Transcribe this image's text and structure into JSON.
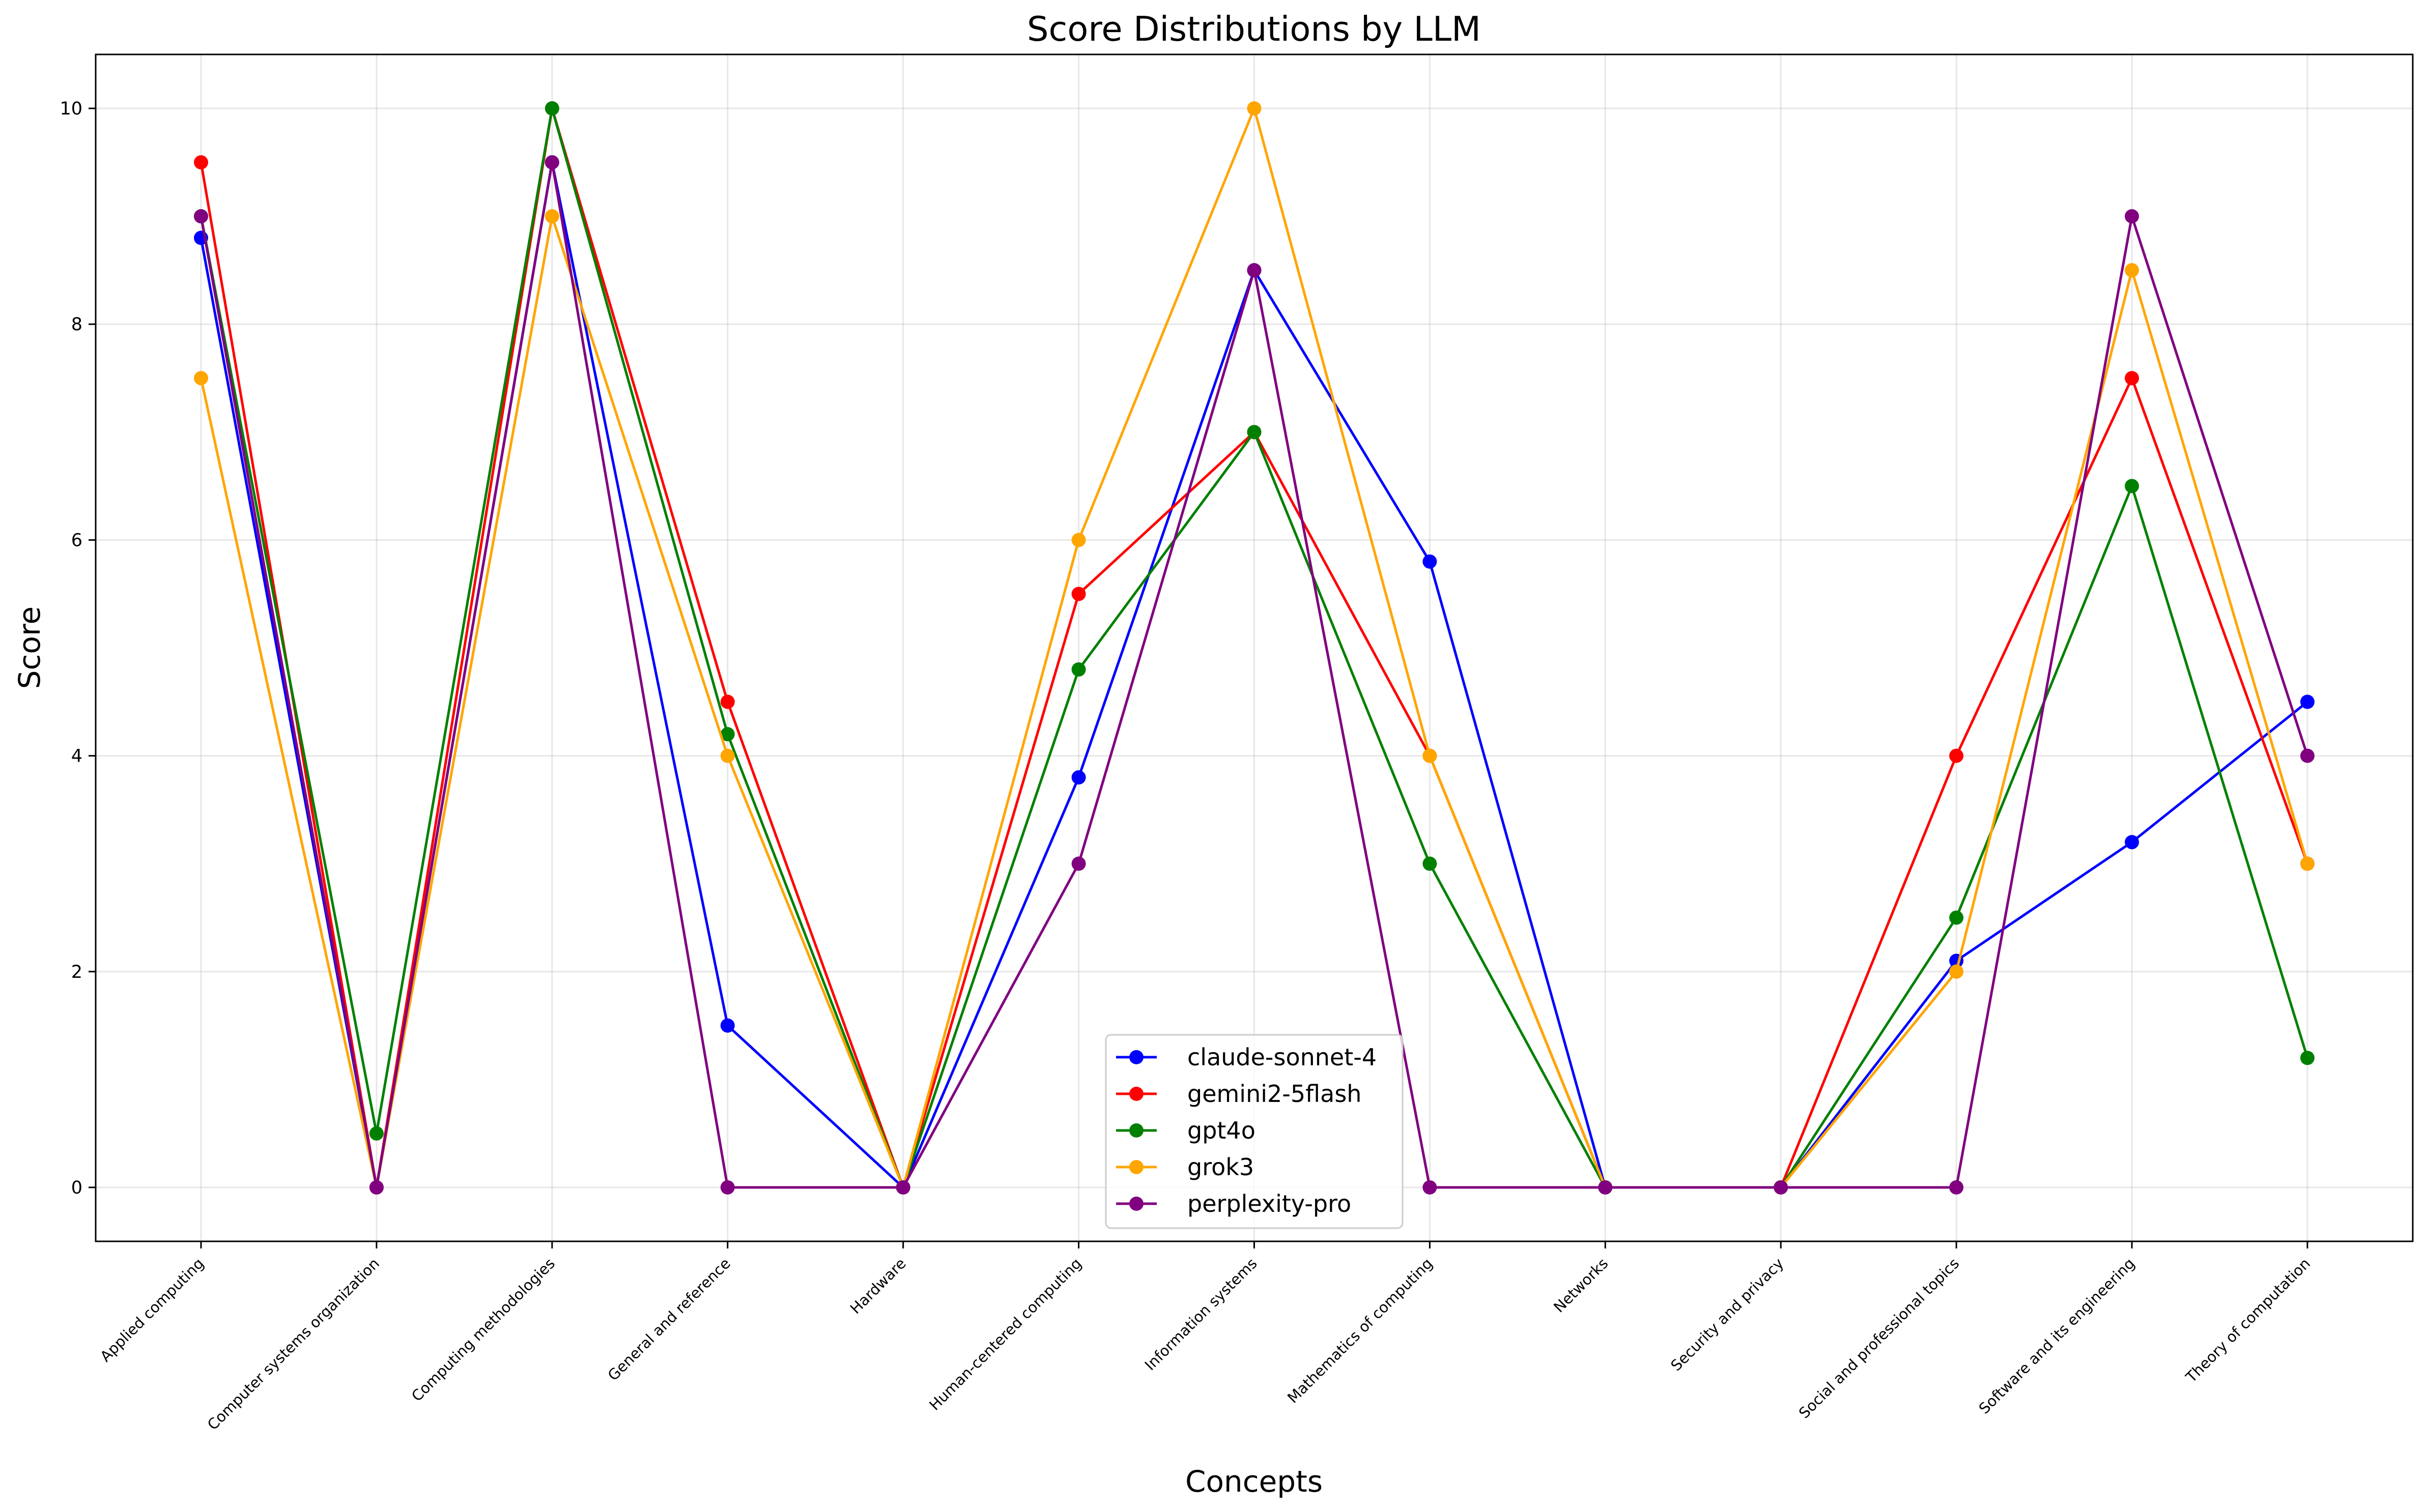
{
  "chart_data": {
    "type": "line",
    "title": "Score Distributions by LLM",
    "xlabel": "Concepts",
    "ylabel": "Score",
    "categories": [
      "Applied computing",
      "Computer systems organization",
      "Computing methodologies",
      "General and reference",
      "Hardware",
      "Human-centered computing",
      "Information systems",
      "Mathematics of computing",
      "Networks",
      "Security and privacy",
      "Social and professional topics",
      "Software and its engineering",
      "Theory of computation"
    ],
    "ylim": [
      -0.5,
      10.5
    ],
    "yticks": [
      0,
      2,
      4,
      6,
      8,
      10
    ],
    "grid": true,
    "legend_position": "bottom-center",
    "series": [
      {
        "name": "claude-sonnet-4",
        "color": "#0000ff",
        "values": [
          8.8,
          0,
          9.5,
          1.5,
          0,
          3.8,
          8.5,
          5.8,
          0,
          0,
          2.1,
          3.2,
          4.5
        ]
      },
      {
        "name": "gemini2-5flash",
        "color": "#ff0000",
        "values": [
          9.5,
          0,
          10,
          4.5,
          0,
          5.5,
          7,
          4,
          0,
          0,
          4,
          7.5,
          3
        ]
      },
      {
        "name": "gpt4o",
        "color": "#008000",
        "values": [
          9,
          0.5,
          10,
          4.2,
          0,
          4.8,
          7,
          3,
          0,
          0,
          2.5,
          6.5,
          1.2
        ]
      },
      {
        "name": "grok3",
        "color": "#ffa500",
        "values": [
          7.5,
          0,
          9,
          4,
          0,
          6,
          10,
          4,
          0,
          0,
          2,
          8.5,
          3
        ]
      },
      {
        "name": "perplexity-pro",
        "color": "#800080",
        "values": [
          9,
          0,
          9.5,
          0,
          0,
          3,
          8.5,
          0,
          0,
          0,
          0,
          9,
          4
        ]
      }
    ]
  }
}
